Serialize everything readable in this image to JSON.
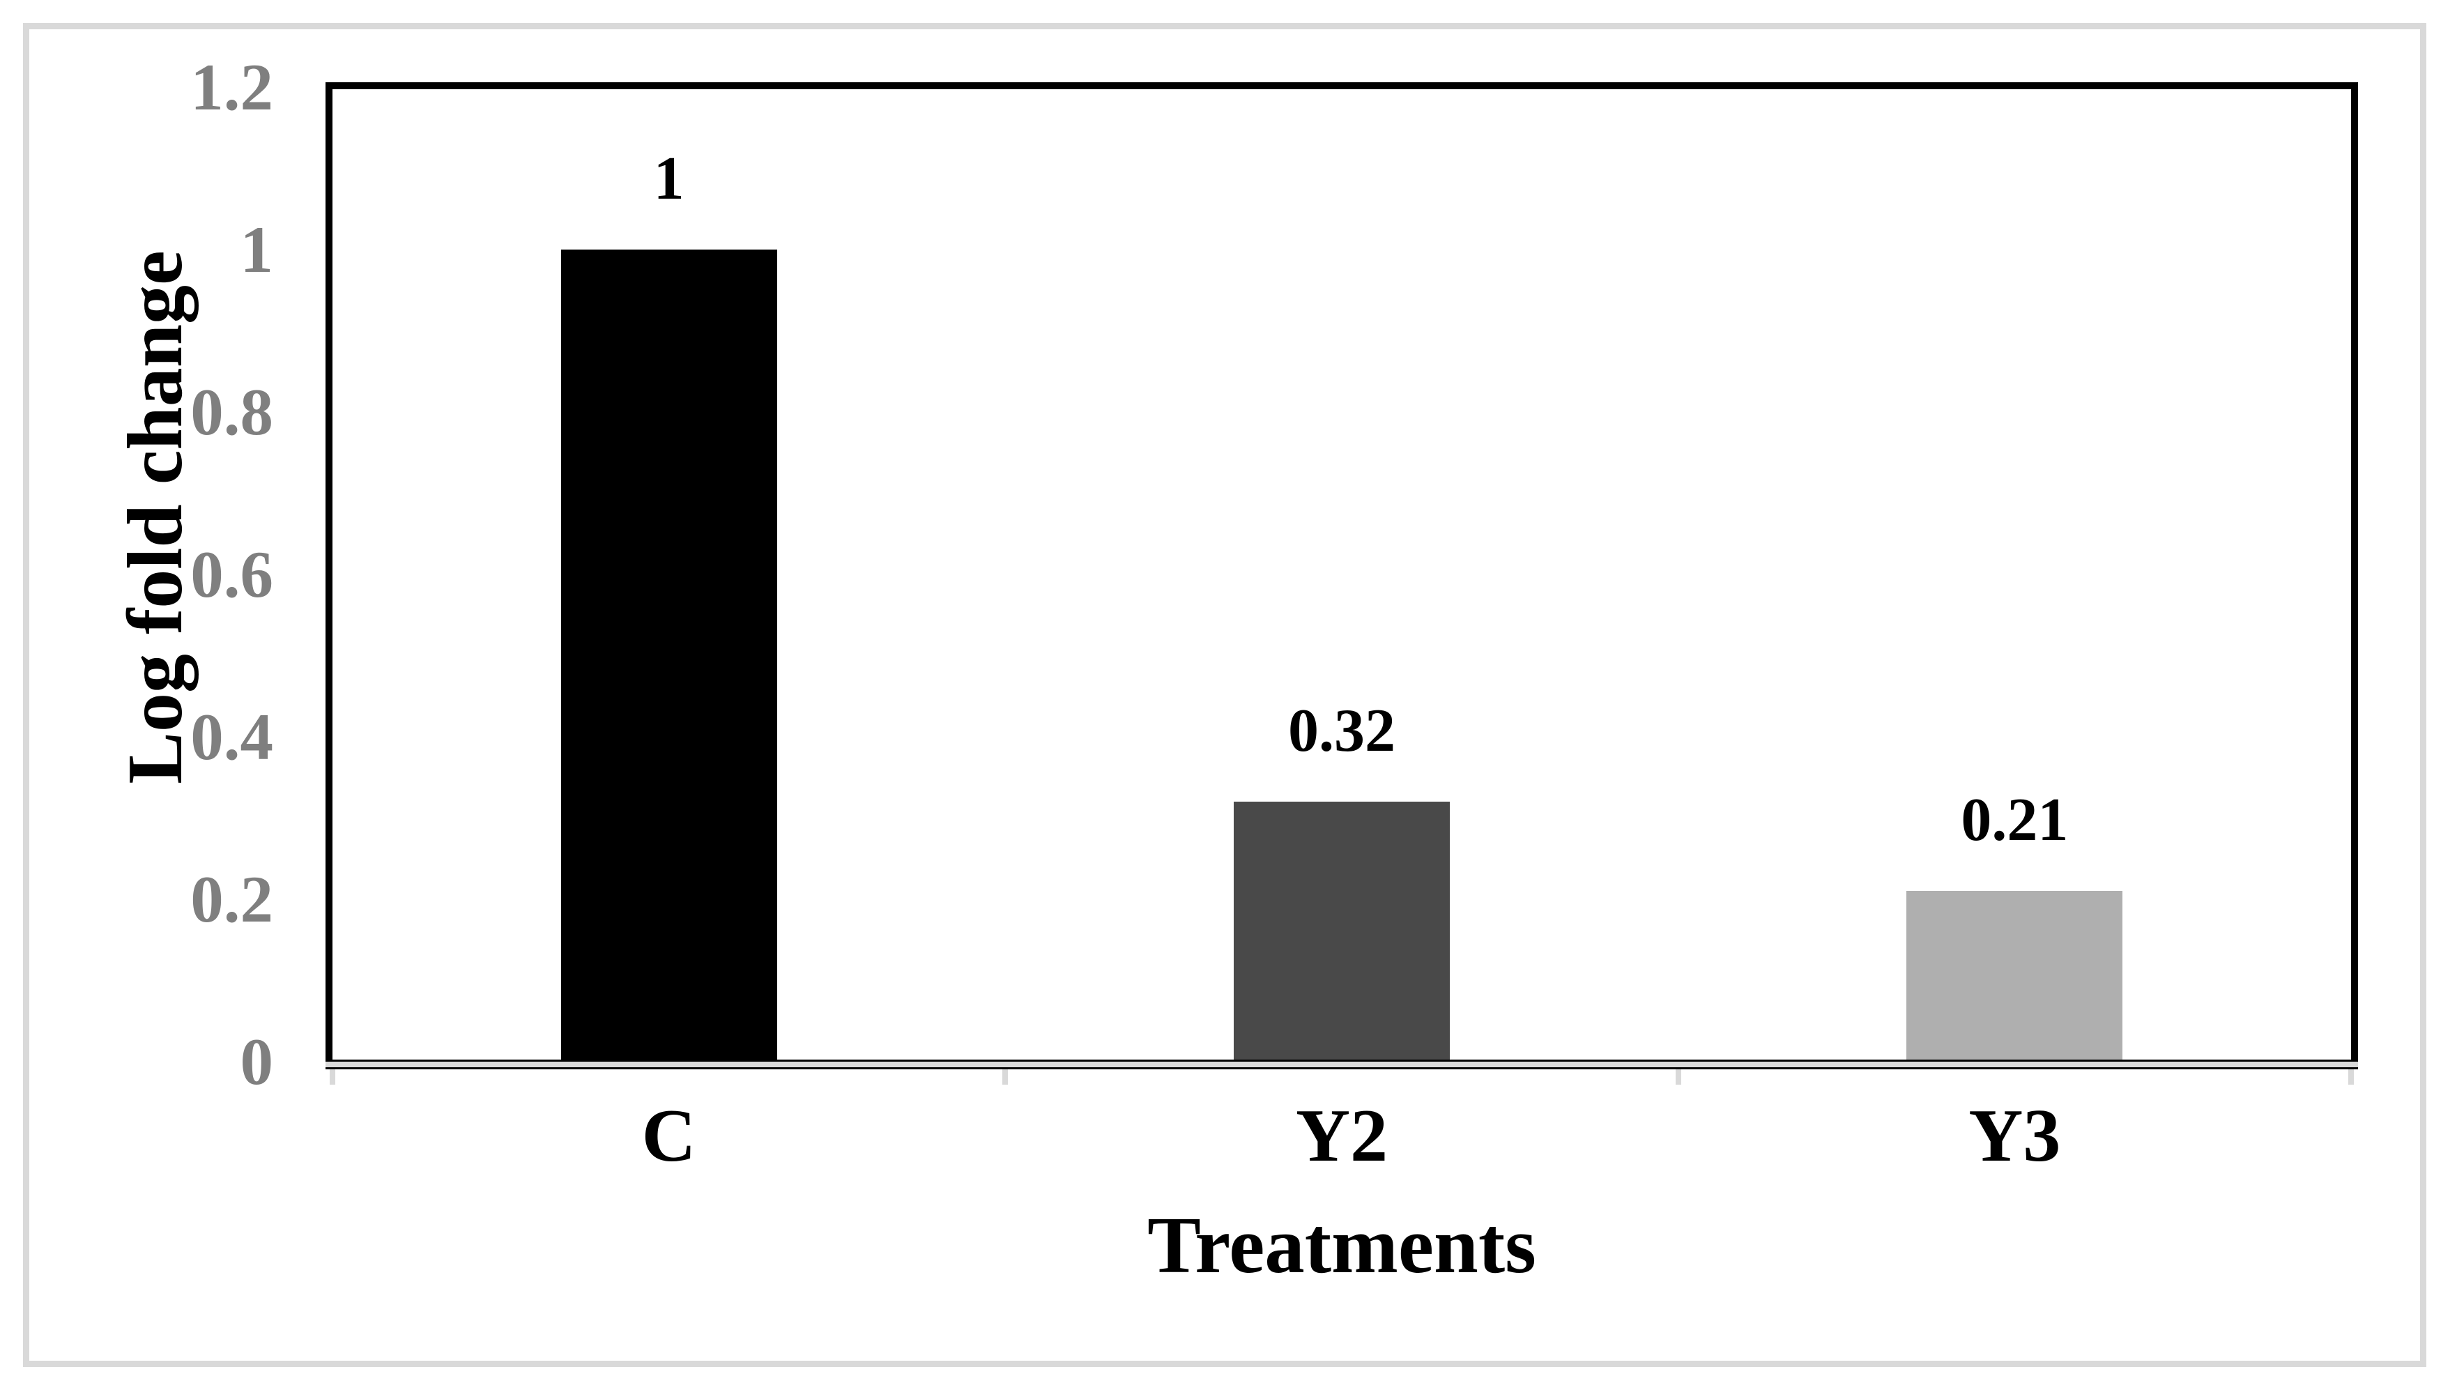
{
  "figure": {
    "background_color": "#ffffff",
    "border_color": "#d9d9d9"
  },
  "chart_data": {
    "type": "bar",
    "title": "",
    "categories": [
      "C",
      "Y2",
      "Y3"
    ],
    "values": [
      1,
      0.32,
      0.21
    ],
    "data_labels": [
      "1",
      "0.32",
      "0.21"
    ],
    "bar_colors": [
      "#000000",
      "#494949",
      "#afafaf"
    ],
    "xlabel": "Treatments",
    "ylabel": "Log fold change",
    "ylim": [
      0,
      1.2
    ],
    "yticks": [
      0,
      0.2,
      0.4,
      0.6,
      0.8,
      1,
      1.2
    ],
    "ytick_labels": [
      "0",
      "0.2",
      "0.4",
      "0.6",
      "0.8",
      "1",
      "1.2"
    ],
    "grid": false,
    "legend": false,
    "layout_hints": {
      "bar_gap": "wide",
      "data_labels_position": "above bars",
      "plot_border": "thick black, no bottom",
      "axis_line": "black-gray-black sandwich with gray tick marks below"
    },
    "styles": {
      "ytick_text_color": "#7f7f7f",
      "xtick_text_color": "#000000",
      "data_label_color": "#000000",
      "axis_border_color": "#000000",
      "tick_mark_color": "#d9d9d9"
    }
  }
}
